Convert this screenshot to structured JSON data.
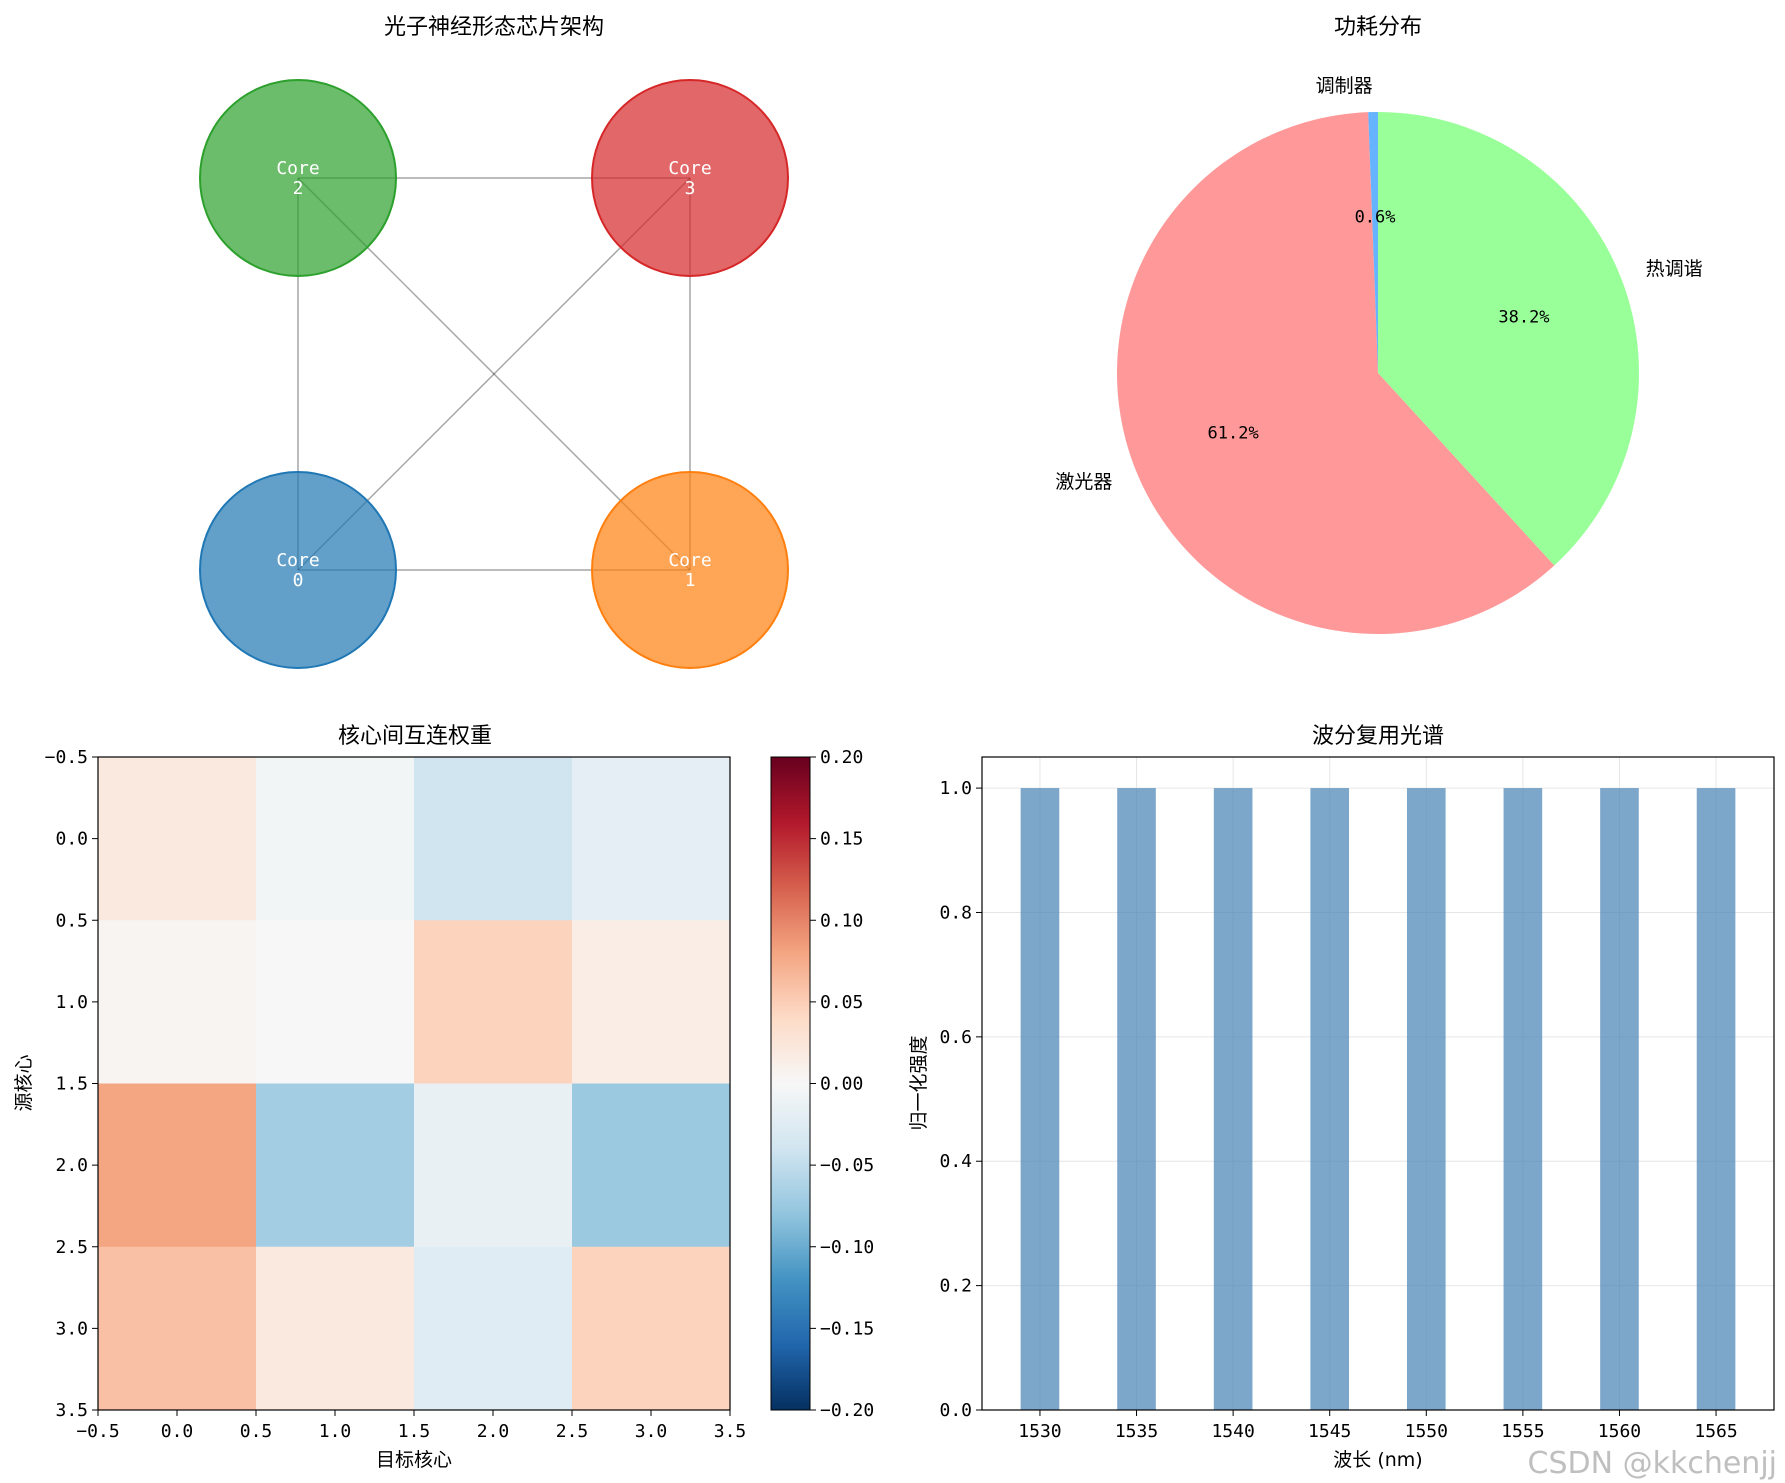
{
  "watermark": "CSDN @kkchenjj",
  "chart_data": [
    {
      "type": "diagram",
      "title": "光子神经形态芯片架构",
      "nodes": [
        {
          "id": 0,
          "label": "Core\n0",
          "x": 0,
          "y": 0,
          "color": "#1f77b4"
        },
        {
          "id": 1,
          "label": "Core\n1",
          "x": 1,
          "y": 0,
          "color": "#ff7f0e"
        },
        {
          "id": 2,
          "label": "Core\n2",
          "x": 0,
          "y": 1,
          "color": "#2ca02c"
        },
        {
          "id": 3,
          "label": "Core\n3",
          "x": 1,
          "y": 1,
          "color": "#d62728"
        }
      ],
      "edges": [
        [
          0,
          1
        ],
        [
          0,
          2
        ],
        [
          0,
          3
        ],
        [
          1,
          2
        ],
        [
          1,
          3
        ],
        [
          2,
          3
        ]
      ]
    },
    {
      "type": "pie",
      "title": "功耗分布",
      "labels": [
        "热调谐",
        "激光器",
        "调制器"
      ],
      "values": [
        38.2,
        61.2,
        0.6
      ],
      "autopct": [
        "38.2%",
        "61.2%",
        "0.6%"
      ],
      "colors": [
        "#99ff99",
        "#ff9999",
        "#66b3ff"
      ]
    },
    {
      "type": "heatmap",
      "title": "核心间互连权重",
      "xlabel": "目标核心",
      "ylabel": "源核心",
      "values": [
        [
          0.02,
          -0.005,
          -0.04,
          -0.02
        ],
        [
          0.005,
          0.0,
          0.045,
          0.015
        ],
        [
          0.08,
          -0.07,
          -0.015,
          -0.075
        ],
        [
          0.06,
          0.02,
          -0.025,
          0.045
        ]
      ],
      "xlim": [
        -0.5,
        3.5
      ],
      "ylim": [
        -0.5,
        3.5
      ],
      "xticks": [
        "−0.5",
        "0.0",
        "0.5",
        "1.0",
        "1.5",
        "2.0",
        "2.5",
        "3.0",
        "3.5"
      ],
      "yticks": [
        "−0.5",
        "0.0",
        "0.5",
        "1.0",
        "1.5",
        "2.0",
        "2.5",
        "3.0",
        "3.5"
      ],
      "colorbar": {
        "cmap": "RdBu_r",
        "range": [
          -0.2,
          0.2
        ],
        "ticks": [
          "0.20",
          "0.15",
          "0.10",
          "0.05",
          "0.00",
          "−0.05",
          "−0.10",
          "−0.15",
          "−0.20"
        ]
      }
    },
    {
      "type": "bar",
      "title": "波分复用光谱",
      "xlabel": "波长 (nm)",
      "ylabel": "归一化强度",
      "x": [
        1530,
        1535,
        1540,
        1545,
        1550,
        1555,
        1560,
        1565
      ],
      "values": [
        1.0,
        1.0,
        1.0,
        1.0,
        1.0,
        1.0,
        1.0,
        1.0
      ],
      "bar_width": 2,
      "xlim": [
        1527,
        1568
      ],
      "ylim": [
        0,
        1.05
      ],
      "xticks": [
        "1530",
        "1535",
        "1540",
        "1545",
        "1550",
        "1555",
        "1560",
        "1565"
      ],
      "yticks": [
        "0.0",
        "0.2",
        "0.4",
        "0.6",
        "0.8",
        "1.0"
      ],
      "color": "#4682b4",
      "grid": true
    }
  ]
}
